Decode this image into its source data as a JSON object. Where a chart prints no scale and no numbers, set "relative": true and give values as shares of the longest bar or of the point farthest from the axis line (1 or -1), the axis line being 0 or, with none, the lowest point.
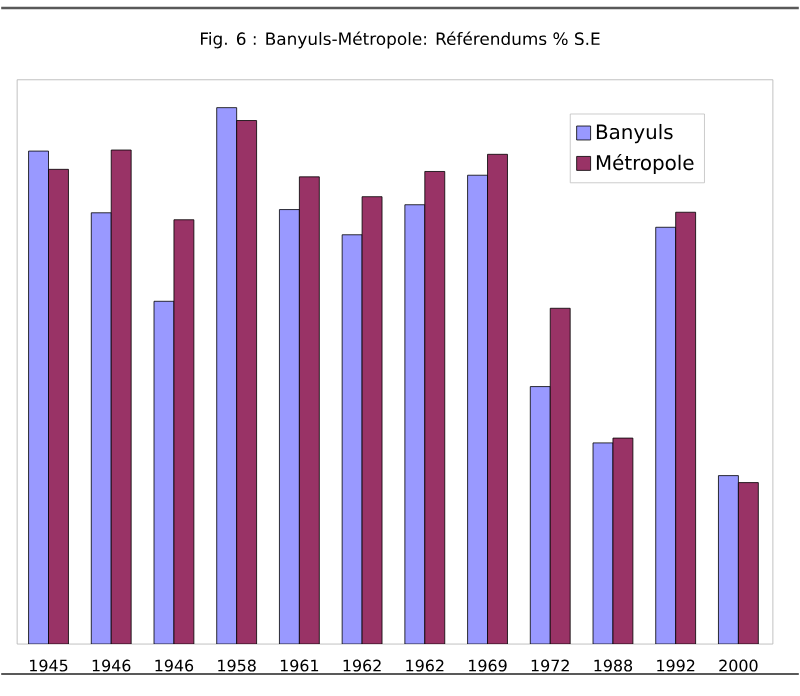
{
  "chart_data": {
    "type": "bar",
    "title": "Fig. 6 : Banyuls-Métropole: Référendums % S.E",
    "relative": true,
    "categories": [
      "1945",
      "1946",
      "1946",
      "1958",
      "1961",
      "1962",
      "1962",
      "1969",
      "1972",
      "1988",
      "1992",
      "2000"
    ],
    "series": [
      {
        "name": "Banyuls",
        "color": "#9999ff",
        "values": [
          0.919,
          0.804,
          0.639,
          1,
          0.81,
          0.763,
          0.819,
          0.874,
          0.48,
          0.375,
          0.777,
          0.314
        ]
      },
      {
        "name": "Métropole",
        "color": "#993366",
        "values": [
          0.885,
          0.921,
          0.791,
          0.976,
          0.871,
          0.834,
          0.881,
          0.913,
          0.626,
          0.384,
          0.805,
          0.301
        ]
      }
    ],
    "legend": "top right",
    "grid": false
  }
}
